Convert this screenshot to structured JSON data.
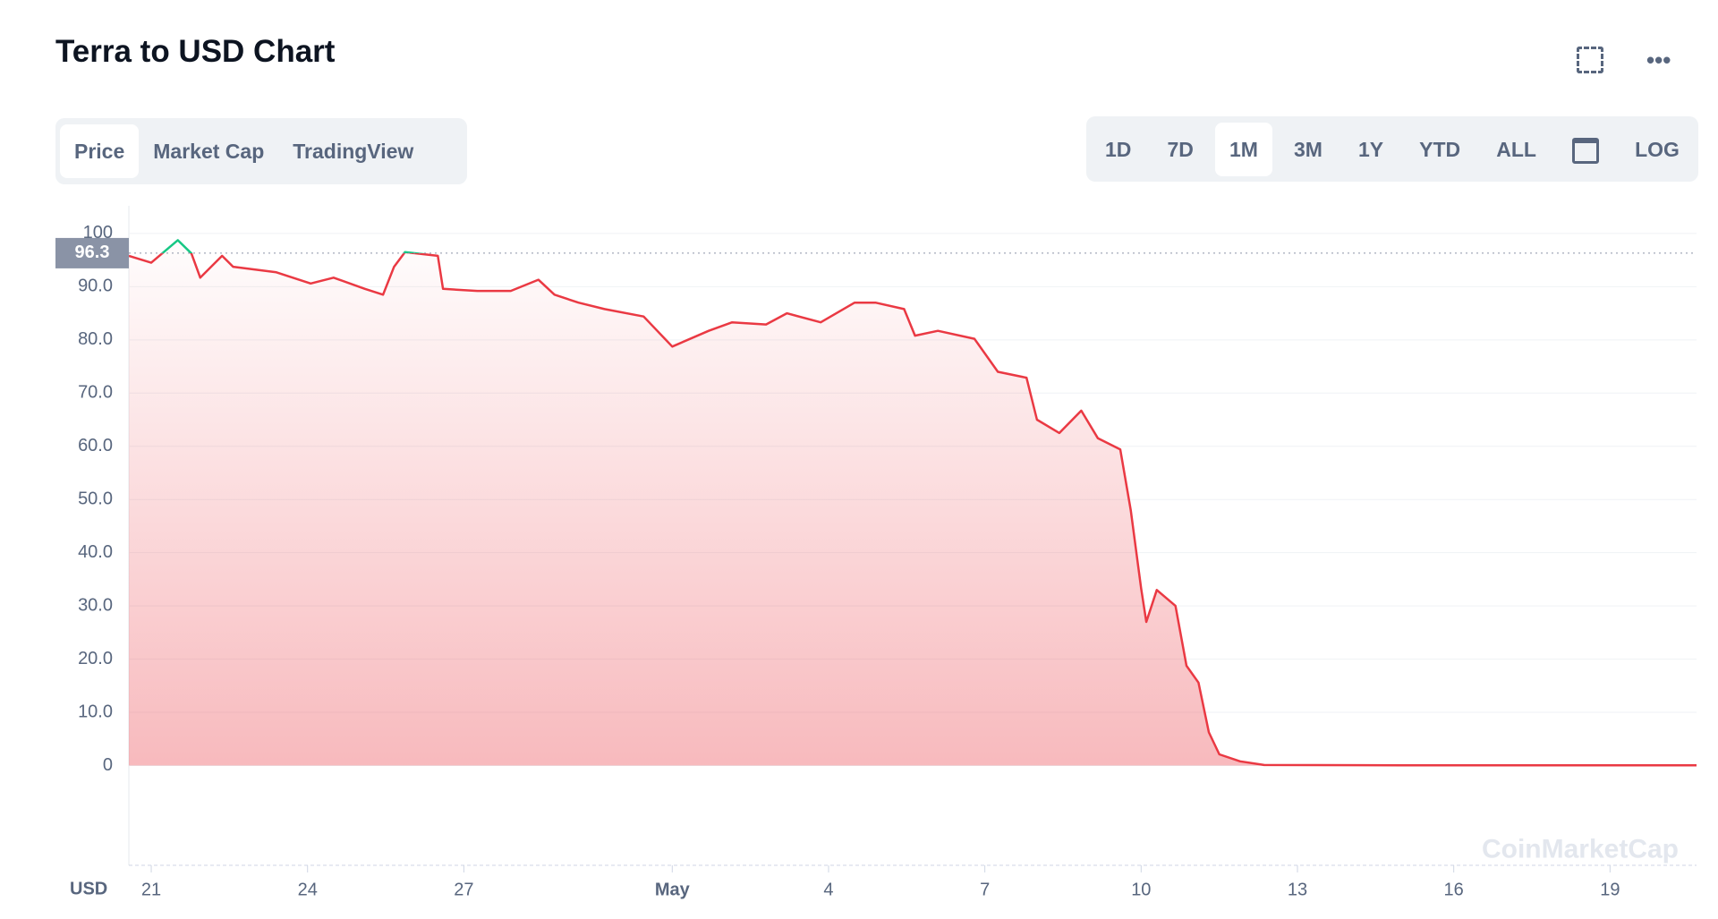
{
  "header": {
    "title": "Terra to USD Chart"
  },
  "tabs": [
    "Price",
    "Market Cap",
    "TradingView"
  ],
  "active_tab": 0,
  "ranges": [
    "1D",
    "7D",
    "1M",
    "3M",
    "1Y",
    "YTD",
    "ALL",
    "LOG"
  ],
  "active_range": 2,
  "chart_data": {
    "type": "line",
    "x": [
      20.57,
      21,
      21.51,
      21.77,
      21.94,
      22.36,
      22.57,
      23.4,
      24.06,
      24.5,
      25.1,
      25.45,
      25.66,
      25.87,
      26.5,
      26.6,
      27.26,
      27.9,
      28.43,
      28.74,
      29.2,
      29.7,
      30.45,
      31,
      31.7,
      32.15,
      32.8,
      33.2,
      33.85,
      34.5,
      34.9,
      35.45,
      35.66,
      36.1,
      36.8,
      37.25,
      37.8,
      38,
      38.43,
      38.85,
      39.17,
      39.6,
      39.8,
      40,
      40.1,
      40.3,
      40.66,
      40.87,
      41.1,
      41.3,
      41.5,
      41.9,
      42.36,
      45,
      48,
      50.66
    ],
    "series": [
      {
        "name": "Price",
        "color": "#ea3943",
        "up_color": "#16c784",
        "values": [
          95.8,
          94.5,
          98.75,
          96.25,
          91.7,
          95.8,
          93.75,
          92.7,
          90.6,
          91.7,
          89.6,
          88.5,
          93.75,
          96.5,
          95.8,
          89.6,
          89.2,
          89.2,
          91.3,
          88.5,
          87,
          85.8,
          84.4,
          78.75,
          81.7,
          83.3,
          82.9,
          85,
          83.3,
          87,
          87,
          85.8,
          80.8,
          81.7,
          80.2,
          74,
          72.9,
          65,
          62.5,
          66.7,
          61.5,
          59.4,
          48,
          33.3,
          27,
          33,
          30,
          18.75,
          15.6,
          6.25,
          2.1,
          0.8,
          0.1,
          0.05,
          0.05,
          0.05
        ]
      }
    ],
    "current_price": 96.3,
    "xlim": [
      20.57,
      50.66
    ],
    "xticks": [
      21,
      24,
      27,
      {
        "value": 31,
        "label": "May"
      },
      {
        "value": 34,
        "label": "4"
      },
      {
        "value": 37,
        "label": "7"
      },
      {
        "value": 40,
        "label": "10"
      },
      {
        "value": 43,
        "label": "13"
      },
      {
        "value": 46,
        "label": "16"
      },
      {
        "value": 49,
        "label": "19"
      }
    ],
    "ylim": [
      -18.75,
      105.2
    ],
    "yticks": [
      0,
      {
        "value": 10,
        "label": "10.0"
      },
      {
        "value": 20,
        "label": "20.0"
      },
      {
        "value": 30,
        "label": "30.0"
      },
      {
        "value": 40,
        "label": "40.0"
      },
      {
        "value": 50,
        "label": "50.0"
      },
      {
        "value": 60,
        "label": "60.0"
      },
      {
        "value": 70,
        "label": "70.0"
      },
      {
        "value": 80,
        "label": "80.0"
      },
      {
        "value": 90,
        "label": "90.0"
      },
      100
    ],
    "y_unit": "USD",
    "watermark": "CoinMarketCap",
    "grid": true
  }
}
